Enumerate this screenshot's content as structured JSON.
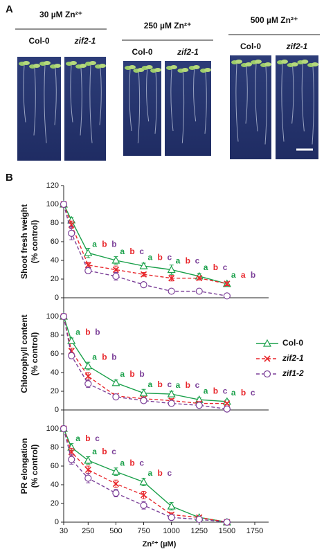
{
  "panel_a": {
    "label": "A",
    "groups": [
      {
        "title": "30 µM Zn²⁺",
        "lines": [
          "Col-0",
          "zif2-1"
        ]
      },
      {
        "title": "250 µM Zn²⁺",
        "lines": [
          "Col-0",
          "zif2-1"
        ]
      },
      {
        "title": "500 µM Zn²⁺",
        "lines": [
          "Col-0",
          "zif2-1"
        ]
      }
    ]
  },
  "panel_b_label": "B",
  "chart_data": [
    {
      "type": "line",
      "ylabel": [
        "Shoot fresh weight",
        "(% control)"
      ],
      "x": [
        30,
        100,
        250,
        500,
        750,
        1000,
        1250,
        1500
      ],
      "xlim": [
        30,
        1750
      ],
      "ylim": [
        0,
        120
      ],
      "yticks": [
        0,
        20,
        40,
        60,
        80,
        100,
        120
      ],
      "series": [
        {
          "color": "#1aa04a",
          "marker": "triangle",
          "linestyle": "solid",
          "values": [
            100,
            83,
            48,
            40,
            34,
            30,
            23,
            15
          ],
          "errors": [
            3,
            3,
            5,
            4,
            3,
            5,
            3,
            2
          ]
        },
        {
          "color": "#e8262b",
          "marker": "x",
          "linestyle": "dashed",
          "values": [
            100,
            78,
            35,
            30,
            25,
            21,
            21,
            15
          ],
          "errors": [
            3,
            4,
            3,
            4,
            2,
            3,
            2,
            2
          ]
        },
        {
          "color": "#7b3f98",
          "marker": "circle",
          "linestyle": "dashed",
          "values": [
            100,
            69,
            29,
            23,
            14,
            7,
            7,
            2
          ],
          "errors": [
            3,
            7,
            3,
            4,
            2,
            1,
            1,
            1
          ]
        }
      ],
      "letters": [
        {
          "x": 250,
          "labels": [
            "a",
            "b",
            "b"
          ]
        },
        {
          "x": 500,
          "labels": [
            "a",
            "b",
            "c"
          ]
        },
        {
          "x": 750,
          "labels": [
            "a",
            "b",
            "c"
          ]
        },
        {
          "x": 1000,
          "labels": [
            "a",
            "b",
            "c"
          ]
        },
        {
          "x": 1250,
          "labels": [
            "a",
            "b",
            "c"
          ]
        },
        {
          "x": 1500,
          "labels": [
            "a",
            "a",
            "b"
          ]
        }
      ]
    },
    {
      "type": "line",
      "ylabel": [
        "Chlorophyll content",
        "(% control)"
      ],
      "x": [
        30,
        100,
        250,
        500,
        750,
        1000,
        1250,
        1500
      ],
      "xlim": [
        30,
        1750
      ],
      "ylim": [
        0,
        120
      ],
      "yticks": [
        0,
        20,
        40,
        60,
        80,
        100
      ],
      "legend": "right",
      "series": [
        {
          "name": "Col-0",
          "color": "#1aa04a",
          "marker": "triangle",
          "linestyle": "solid",
          "values": [
            100,
            74,
            47,
            29,
            18,
            17,
            11,
            9
          ],
          "errors": [
            3,
            3,
            4,
            3,
            4,
            3,
            2,
            2
          ]
        },
        {
          "name": "zif2-1",
          "color": "#e8262b",
          "marker": "x",
          "linestyle": "dashed",
          "values": [
            100,
            63,
            36,
            15,
            12,
            10,
            7,
            7
          ],
          "errors": [
            3,
            3,
            4,
            2,
            2,
            2,
            2,
            1
          ]
        },
        {
          "name": "zif1-2",
          "color": "#7b3f98",
          "marker": "circle",
          "linestyle": "dashed",
          "values": [
            100,
            58,
            28,
            14,
            10,
            7,
            5,
            1
          ],
          "errors": [
            3,
            3,
            4,
            2,
            2,
            1,
            1,
            1
          ]
        }
      ],
      "letters": [
        {
          "x": 100,
          "labels": [
            "a",
            "b",
            "b"
          ]
        },
        {
          "x": 250,
          "labels": [
            "a",
            "b",
            "b"
          ]
        },
        {
          "x": 500,
          "labels": [
            "a",
            "b",
            "b"
          ]
        },
        {
          "x": 750,
          "labels": [
            "a",
            "b",
            "c"
          ]
        },
        {
          "x": 1000,
          "labels": [
            "a",
            "b",
            "c"
          ]
        },
        {
          "x": 1250,
          "labels": [
            "a",
            "b",
            "c"
          ]
        },
        {
          "x": 1500,
          "labels": [
            "a",
            "b",
            "c"
          ]
        }
      ]
    },
    {
      "type": "line",
      "ylabel": [
        "PR elongation",
        "(% control)"
      ],
      "xlabel": "Zn²⁺ (µM)",
      "x": [
        30,
        100,
        250,
        500,
        750,
        1000,
        1250,
        1500
      ],
      "xlim": [
        30,
        1750
      ],
      "xticks": [
        30,
        250,
        500,
        750,
        1000,
        1250,
        1500,
        1750
      ],
      "ylim": [
        0,
        120
      ],
      "yticks": [
        0,
        20,
        40,
        60,
        80,
        100
      ],
      "series": [
        {
          "color": "#1aa04a",
          "marker": "triangle",
          "linestyle": "solid",
          "values": [
            100,
            80,
            66,
            54,
            43,
            17,
            5,
            0
          ],
          "errors": [
            2,
            4,
            4,
            4,
            4,
            4,
            1,
            0
          ]
        },
        {
          "color": "#e8262b",
          "marker": "x",
          "linestyle": "dashed",
          "values": [
            100,
            75,
            56,
            41,
            29,
            8,
            5,
            0
          ],
          "errors": [
            2,
            4,
            4,
            4,
            4,
            2,
            1,
            0
          ]
        },
        {
          "color": "#7b3f98",
          "marker": "circle",
          "linestyle": "dashed",
          "values": [
            100,
            67,
            47,
            31,
            18,
            5,
            3,
            0
          ],
          "errors": [
            2,
            5,
            5,
            4,
            4,
            1,
            1,
            0
          ]
        }
      ],
      "letters": [
        {
          "x": 100,
          "labels": [
            "a",
            "b",
            "c"
          ]
        },
        {
          "x": 250,
          "labels": [
            "a",
            "b",
            "c"
          ]
        },
        {
          "x": 500,
          "labels": [
            "a",
            "b",
            "c"
          ]
        },
        {
          "x": 750,
          "labels": [
            "a",
            "b",
            "c"
          ]
        }
      ]
    }
  ]
}
